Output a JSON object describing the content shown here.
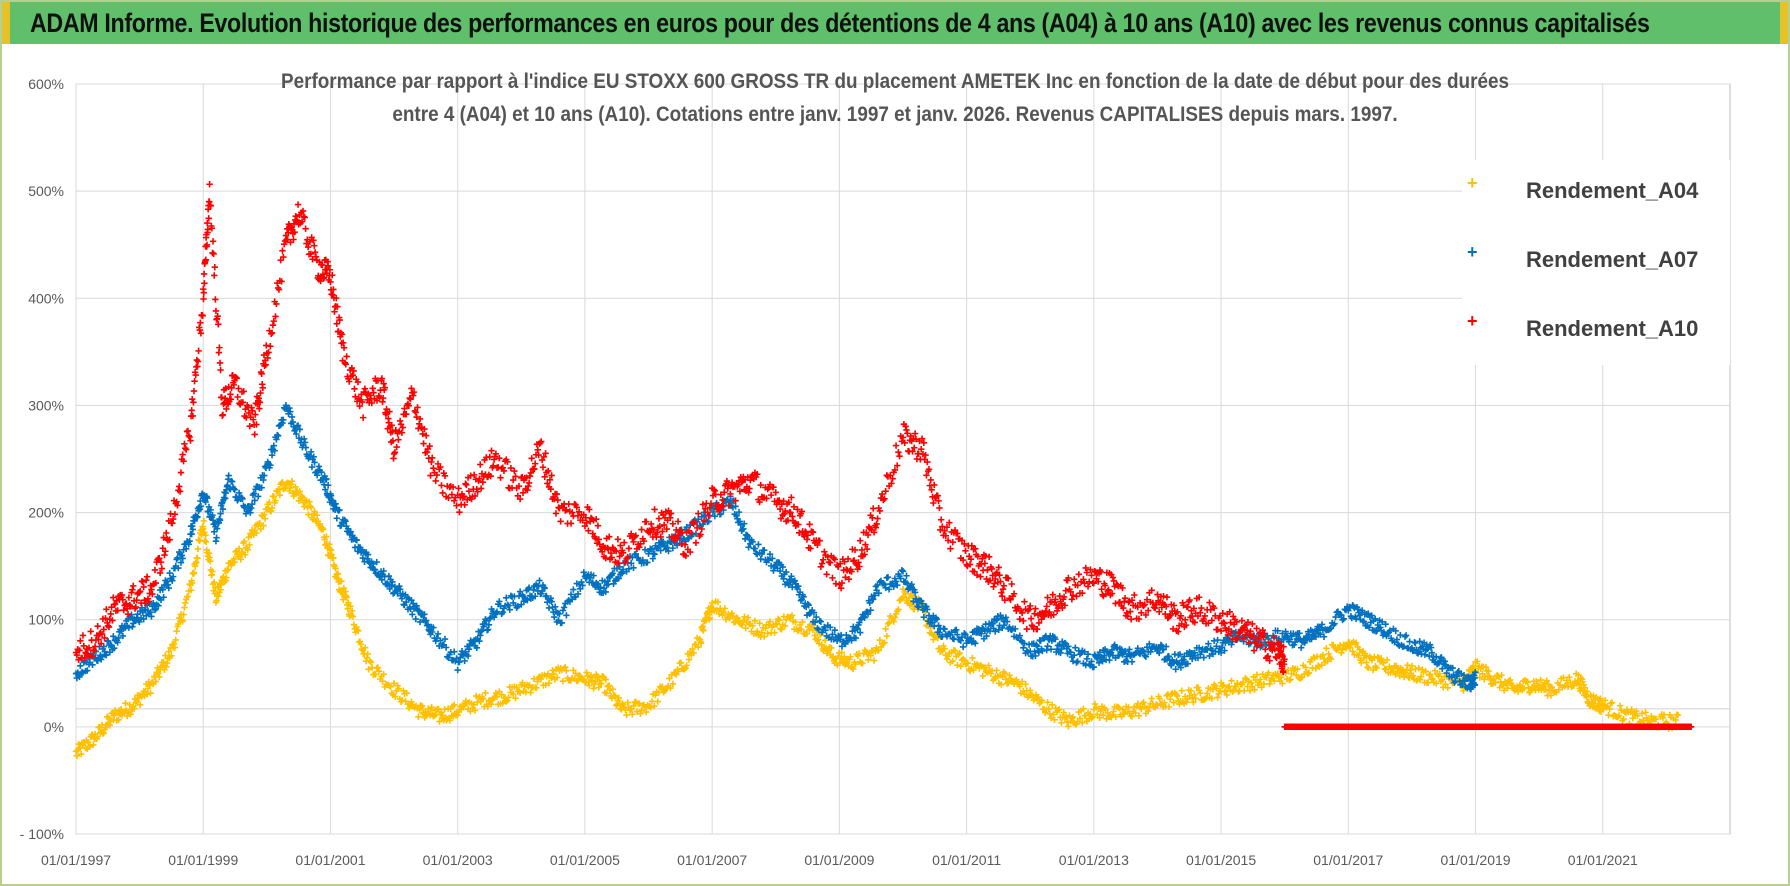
{
  "header": {
    "title": "ADAM Informe. Evolution historique des performances en euros pour des détentions de 4 ans (A04) à 10 ans (A10) avec les revenus connus capitalisés"
  },
  "colors": {
    "banner": "#5fbf6a",
    "banner_edge": "#e6c229",
    "Rendement_A04": "#ffc000",
    "Rendement_A07": "#0070c0",
    "Rendement_A10": "#ff0000",
    "grid": "#d9d9d9"
  },
  "chart_data": {
    "type": "scatter",
    "title_line1": "Performance par rapport à l'indice EU STOXX 600 GROSS TR  du placement AMETEK Inc en fonction de la date de début pour des durées",
    "title_line2": "entre 4 (A04) et 10 ans (A10). Cotations entre janv. 1997 et janv. 2026. Revenus CAPITALISES depuis mars. 1997.",
    "xlabel": "",
    "ylabel": "",
    "x_range": [
      1997.0,
      2023.0
    ],
    "ylim": [
      -100,
      600
    ],
    "x_ticks": [
      {
        "x": 1997,
        "label": "01/01/1997"
      },
      {
        "x": 1999,
        "label": "01/01/1999"
      },
      {
        "x": 2001,
        "label": "01/01/2001"
      },
      {
        "x": 2003,
        "label": "01/01/2003"
      },
      {
        "x": 2005,
        "label": "01/01/2005"
      },
      {
        "x": 2007,
        "label": "01/01/2007"
      },
      {
        "x": 2009,
        "label": "01/01/2009"
      },
      {
        "x": 2011,
        "label": "01/01/2011"
      },
      {
        "x": 2013,
        "label": "01/01/2013"
      },
      {
        "x": 2015,
        "label": "01/01/2015"
      },
      {
        "x": 2017,
        "label": "01/01/2017"
      },
      {
        "x": 2019,
        "label": "01/01/2019"
      },
      {
        "x": 2021,
        "label": "01/01/2021"
      }
    ],
    "y_ticks": [
      {
        "y": -100,
        "label": "- 100%"
      },
      {
        "y": 0,
        "label": "0%"
      },
      {
        "y": 100,
        "label": "100%"
      },
      {
        "y": 200,
        "label": "200%"
      },
      {
        "y": 300,
        "label": "300%"
      },
      {
        "y": 400,
        "label": "400%"
      },
      {
        "y": 500,
        "label": "500%"
      },
      {
        "y": 600,
        "label": "600%"
      }
    ],
    "legend_position": "top-right",
    "series": [
      {
        "name": "Rendement_A04",
        "x": [
          1997.0,
          1997.3,
          1997.6,
          1997.9,
          1998.2,
          1998.5,
          1998.8,
          1999.0,
          1999.2,
          1999.4,
          1999.7,
          2000.0,
          2000.3,
          2000.6,
          2000.9,
          2001.1,
          2001.3,
          2001.6,
          2002.0,
          2002.4,
          2002.7,
          2003.0,
          2003.4,
          2003.8,
          2004.2,
          2004.6,
          2005.0,
          2005.3,
          2005.6,
          2006.0,
          2006.4,
          2006.8,
          2007.0,
          2007.4,
          2007.8,
          2008.2,
          2008.6,
          2008.9,
          2009.2,
          2009.6,
          2010.0,
          2010.3,
          2010.6,
          2011.0,
          2011.4,
          2011.8,
          2012.2,
          2012.6,
          2013.0,
          2013.4,
          2013.8,
          2014.2,
          2014.6,
          2015.0,
          2015.4,
          2015.8,
          2016.2,
          2016.6,
          2017.0,
          2017.3,
          2017.7,
          2018.0,
          2018.4,
          2018.8,
          2019.0,
          2019.3,
          2019.6,
          2019.9,
          2020.2,
          2020.6,
          2020.8,
          2021.0,
          2021.4,
          2021.8,
          2022.2
        ],
        "y": [
          -25,
          -10,
          10,
          20,
          40,
          70,
          130,
          190,
          120,
          150,
          170,
          200,
          230,
          210,
          180,
          140,
          110,
          60,
          35,
          15,
          10,
          15,
          25,
          30,
          40,
          50,
          45,
          40,
          15,
          20,
          45,
          80,
          115,
          100,
          90,
          100,
          90,
          65,
          60,
          70,
          125,
          110,
          70,
          60,
          50,
          40,
          20,
          5,
          15,
          12,
          18,
          25,
          30,
          35,
          40,
          45,
          50,
          65,
          80,
          60,
          55,
          50,
          45,
          40,
          55,
          45,
          35,
          40,
          35,
          45,
          25,
          20,
          10,
          5,
          5
        ]
      },
      {
        "name": "Rendement_A07",
        "x": [
          1997.0,
          1997.3,
          1997.6,
          1997.9,
          1998.2,
          1998.5,
          1998.8,
          1999.0,
          1999.2,
          1999.4,
          1999.7,
          2000.0,
          2000.3,
          2000.6,
          2000.9,
          2001.1,
          2001.4,
          2001.7,
          2002.0,
          2002.3,
          2002.6,
          2003.0,
          2003.3,
          2003.6,
          2004.0,
          2004.3,
          2004.6,
          2005.0,
          2005.3,
          2005.6,
          2006.0,
          2006.3,
          2006.6,
          2007.0,
          2007.3,
          2007.6,
          2008.0,
          2008.3,
          2008.6,
          2009.0,
          2009.3,
          2009.6,
          2010.0,
          2010.3,
          2010.6,
          2011.0,
          2011.3,
          2011.6,
          2012.0,
          2012.3,
          2012.6,
          2013.0,
          2013.3,
          2013.6,
          2014.0,
          2014.3,
          2014.6,
          2015.0,
          2015.3,
          2015.6,
          2016.0,
          2016.3,
          2016.6,
          2017.0,
          2017.3,
          2017.6,
          2018.0,
          2018.3,
          2018.6,
          2018.9,
          2019.0
        ],
        "y": [
          50,
          65,
          80,
          100,
          110,
          140,
          180,
          220,
          180,
          230,
          200,
          240,
          300,
          260,
          230,
          200,
          170,
          150,
          130,
          110,
          90,
          60,
          80,
          110,
          120,
          130,
          100,
          140,
          130,
          150,
          160,
          170,
          180,
          200,
          210,
          170,
          150,
          130,
          100,
          80,
          90,
          130,
          140,
          110,
          90,
          80,
          90,
          100,
          70,
          80,
          70,
          60,
          70,
          65,
          75,
          60,
          70,
          75,
          85,
          80,
          85,
          80,
          90,
          110,
          100,
          90,
          75,
          70,
          50,
          40,
          45
        ]
      },
      {
        "name": "Rendement_A10",
        "x": [
          1997.0,
          1997.3,
          1997.6,
          1997.9,
          1998.2,
          1998.5,
          1998.8,
          1999.0,
          1999.1,
          1999.3,
          1999.5,
          1999.8,
          2000.0,
          2000.3,
          2000.5,
          2000.8,
          2001.0,
          2001.2,
          2001.5,
          2001.8,
          2002.0,
          2002.3,
          2002.6,
          2003.0,
          2003.3,
          2003.6,
          2004.0,
          2004.3,
          2004.6,
          2005.0,
          2005.3,
          2005.6,
          2006.0,
          2006.3,
          2006.6,
          2007.0,
          2007.3,
          2007.6,
          2008.0,
          2008.3,
          2008.6,
          2009.0,
          2009.3,
          2009.6,
          2010.0,
          2010.3,
          2010.6,
          2011.0,
          2011.3,
          2011.6,
          2012.0,
          2012.3,
          2012.6,
          2013.0,
          2013.3,
          2013.6,
          2014.0,
          2014.3,
          2014.6,
          2015.0,
          2015.3,
          2015.6,
          2015.9,
          2016.0
        ],
        "y": [
          70,
          80,
          110,
          120,
          130,
          190,
          280,
          400,
          500,
          300,
          320,
          280,
          350,
          450,
          480,
          430,
          420,
          350,
          300,
          320,
          260,
          310,
          240,
          210,
          230,
          250,
          220,
          260,
          200,
          200,
          170,
          160,
          190,
          190,
          170,
          210,
          220,
          230,
          210,
          200,
          170,
          140,
          160,
          200,
          270,
          260,
          190,
          160,
          150,
          130,
          100,
          110,
          130,
          140,
          130,
          110,
          120,
          100,
          110,
          100,
          90,
          80,
          70,
          60
        ]
      },
      {
        "name": "Rendement_A10_zero",
        "x": [
          2016.0,
          2022.4
        ],
        "y": [
          0,
          0
        ]
      }
    ]
  },
  "legend": [
    {
      "series": "Rendement_A04",
      "label": "Rendement_A04"
    },
    {
      "series": "Rendement_A07",
      "label": "Rendement_A07"
    },
    {
      "series": "Rendement_A10",
      "label": "Rendement_A10"
    }
  ]
}
